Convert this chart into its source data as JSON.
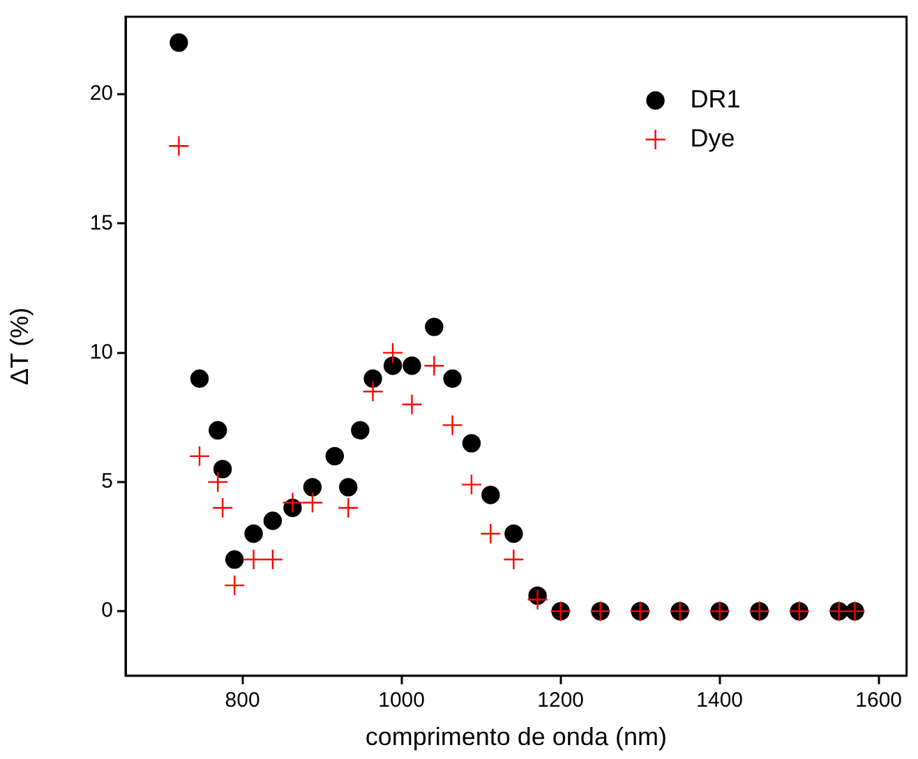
{
  "chart_data": {
    "type": "scatter",
    "xlabel": "comprimento de onda (nm)",
    "ylabel": "ΔT (%)",
    "xlim": [
      653,
      1635
    ],
    "ylim": [
      -2.5,
      23
    ],
    "xticks": [
      800,
      1000,
      1200,
      1400,
      1600
    ],
    "yticks": [
      0,
      5,
      10,
      15,
      20
    ],
    "grid": false,
    "legend": "top right",
    "series": [
      {
        "name": "DR1",
        "color": "#000000",
        "marker": "circle",
        "x": [
          720,
          746,
          769,
          775,
          790,
          814,
          838,
          863,
          888,
          916,
          933,
          948,
          964,
          989,
          1013,
          1041,
          1064,
          1088,
          1112,
          1141,
          1171,
          1200,
          1250,
          1300,
          1350,
          1400,
          1450,
          1500,
          1550,
          1570
        ],
        "values": [
          22,
          9,
          7,
          5.5,
          2,
          3,
          3.5,
          4,
          4.8,
          6,
          4.8,
          7,
          9,
          9.5,
          9.5,
          11,
          9,
          6.5,
          4.5,
          3,
          0.6,
          0,
          0,
          0,
          0,
          0,
          0,
          0,
          0,
          0
        ]
      },
      {
        "name": "Dye",
        "color": "#ff0000",
        "marker": "cross",
        "x": [
          720,
          746,
          769,
          775,
          790,
          814,
          838,
          863,
          888,
          933,
          964,
          989,
          1013,
          1041,
          1064,
          1088,
          1112,
          1141,
          1171,
          1200,
          1250,
          1300,
          1350,
          1400,
          1450,
          1500,
          1550,
          1570
        ],
        "values": [
          18,
          6,
          5,
          4,
          1,
          2,
          2,
          4.2,
          4.2,
          4,
          8.5,
          10,
          8,
          9.5,
          7.2,
          4.9,
          3,
          2,
          0.45,
          0,
          0,
          0,
          0,
          0,
          0,
          0,
          0,
          0
        ]
      }
    ]
  }
}
